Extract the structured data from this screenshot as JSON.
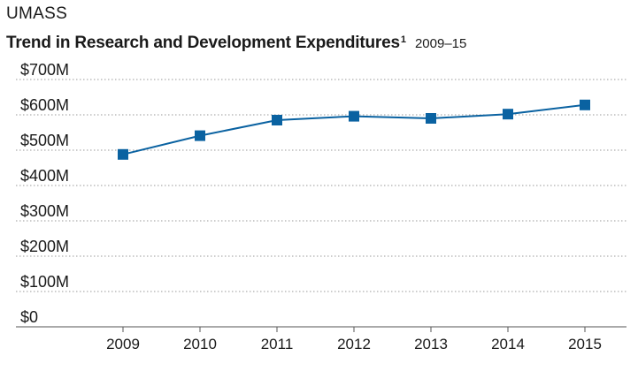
{
  "org": "UMASS",
  "chart_data": {
    "type": "line",
    "title": "Trend in Research and Development Expenditures",
    "title_footnote": "1",
    "subtitle": "2009–15",
    "x": [
      "2009",
      "2010",
      "2011",
      "2012",
      "2013",
      "2014",
      "2015"
    ],
    "series": [
      {
        "values": [
          488,
          541,
          585,
          596,
          590,
          602,
          628
        ],
        "color": "#0a62a1"
      }
    ],
    "unit": "million USD",
    "ylim": [
      0,
      700
    ],
    "yticks": [
      0,
      100,
      200,
      300,
      400,
      500,
      600,
      700
    ],
    "ytick_labels": [
      "$0",
      "$100M",
      "$200M",
      "$300M",
      "$400M",
      "$500M",
      "$600M",
      "$700M"
    ],
    "grid": "horizontal dotted",
    "marker": "square"
  }
}
